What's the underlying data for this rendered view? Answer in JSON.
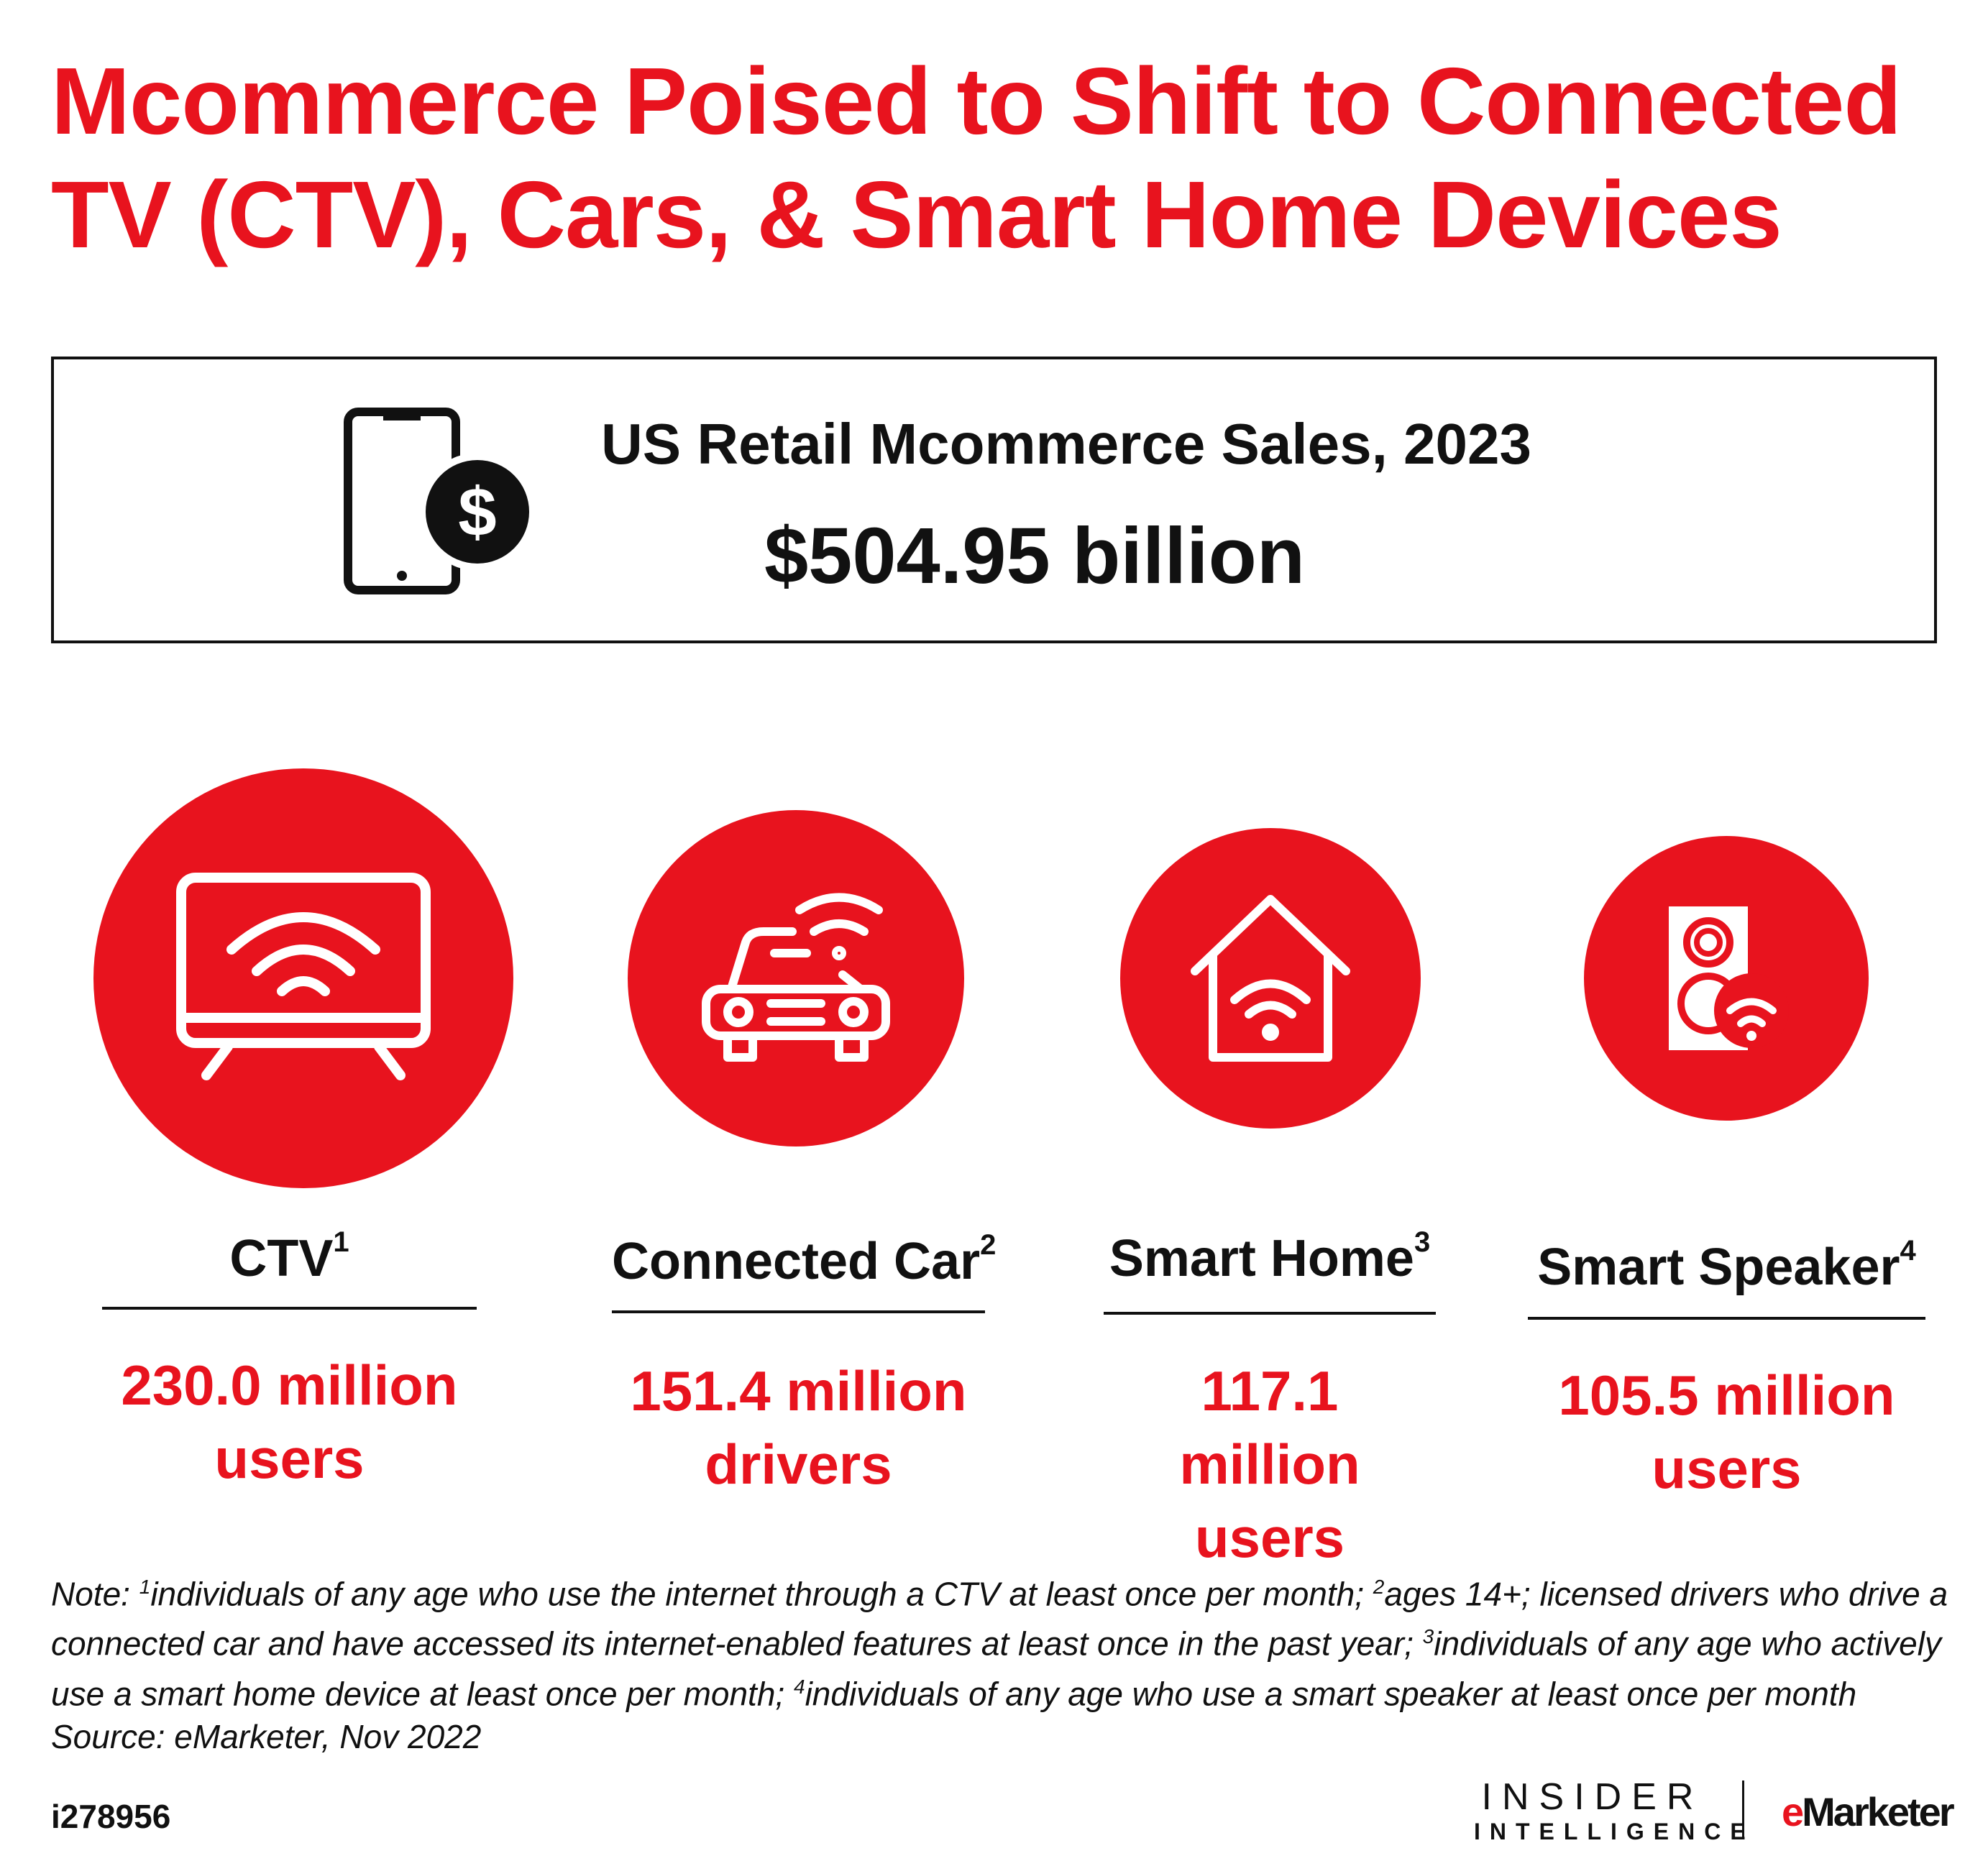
{
  "title": [
    "Mcommerce Poised to Shift to Connected",
    "TV (CTV), Cars, & Smart Home Devices"
  ],
  "summary": {
    "label": "US Retail Mcommerce Sales, 2023",
    "value": "$504.95 billion",
    "icon": "phone-dollar-icon"
  },
  "accent_color": "#e8131e",
  "devices": [
    {
      "label": "CTV",
      "sup": "1",
      "value_line1": "230.0 million",
      "value_line2": "users",
      "icon": "tv-wifi-icon"
    },
    {
      "label": "Connected Car",
      "sup": "2",
      "value_line1": "151.4 million",
      "value_line2": "drivers",
      "icon": "car-wifi-icon"
    },
    {
      "label": "Smart Home",
      "sup": "3",
      "value_line1": "117.1 million",
      "value_line2": "users",
      "icon": "home-wifi-icon"
    },
    {
      "label": "Smart Speaker",
      "sup": "4",
      "value_line1": "105.5 million",
      "value_line2": "users",
      "icon": "speaker-wifi-icon"
    }
  ],
  "note": {
    "prefix": "Note: ",
    "parts": [
      {
        "sup": "1",
        "text": "individuals of any age who use the internet through a CTV at least once per month; "
      },
      {
        "sup": "2",
        "text": "ages 14+; licensed drivers who drive a connected car and have accessed its internet-enabled features at least once in the past year; "
      },
      {
        "sup": "3",
        "text": "individuals of any age who actively use a smart home device at least once per month; "
      },
      {
        "sup": "4",
        "text": "individuals of any age who use a smart speaker at least once per month"
      }
    ],
    "source": "Source: eMarketer, Nov 2022"
  },
  "chart_id": "i278956",
  "logos": {
    "insider_line1": "INSIDER",
    "insider_line2": "INTELLIGENCE",
    "emarketer_e": "e",
    "emarketer_rest": "Marketer"
  }
}
